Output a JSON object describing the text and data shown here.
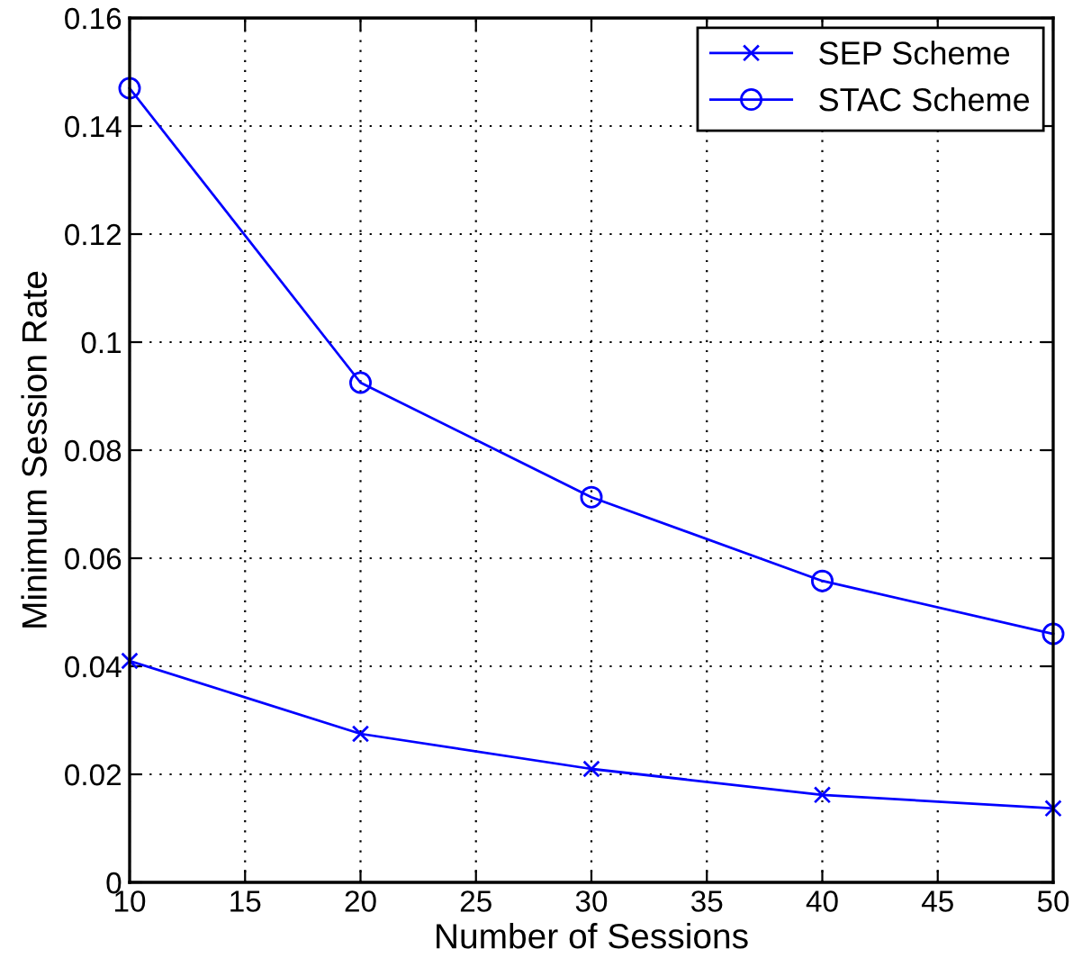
{
  "chart_data": {
    "type": "line",
    "xlabel": "Number of Sessions",
    "ylabel": "Minimum Session Rate",
    "x": [
      10,
      20,
      30,
      40,
      50
    ],
    "series": [
      {
        "name": "SEP Scheme",
        "color": "#0000ff",
        "marker": "cross",
        "values": [
          0.041,
          0.0275,
          0.021,
          0.0162,
          0.0137
        ]
      },
      {
        "name": "STAC Scheme",
        "color": "#0000ff",
        "marker": "circle",
        "values": [
          0.147,
          0.0925,
          0.0713,
          0.0558,
          0.046
        ]
      }
    ],
    "xlim": [
      10,
      50
    ],
    "xticks": [
      10,
      15,
      20,
      25,
      30,
      35,
      40,
      45,
      50
    ],
    "ylim": [
      0,
      0.16
    ],
    "yticks": [
      0,
      0.02,
      0.04,
      0.06,
      0.08,
      0.1,
      0.12,
      0.14,
      0.16
    ],
    "grid": true,
    "legend": "top right",
    "line_style": "solid"
  }
}
